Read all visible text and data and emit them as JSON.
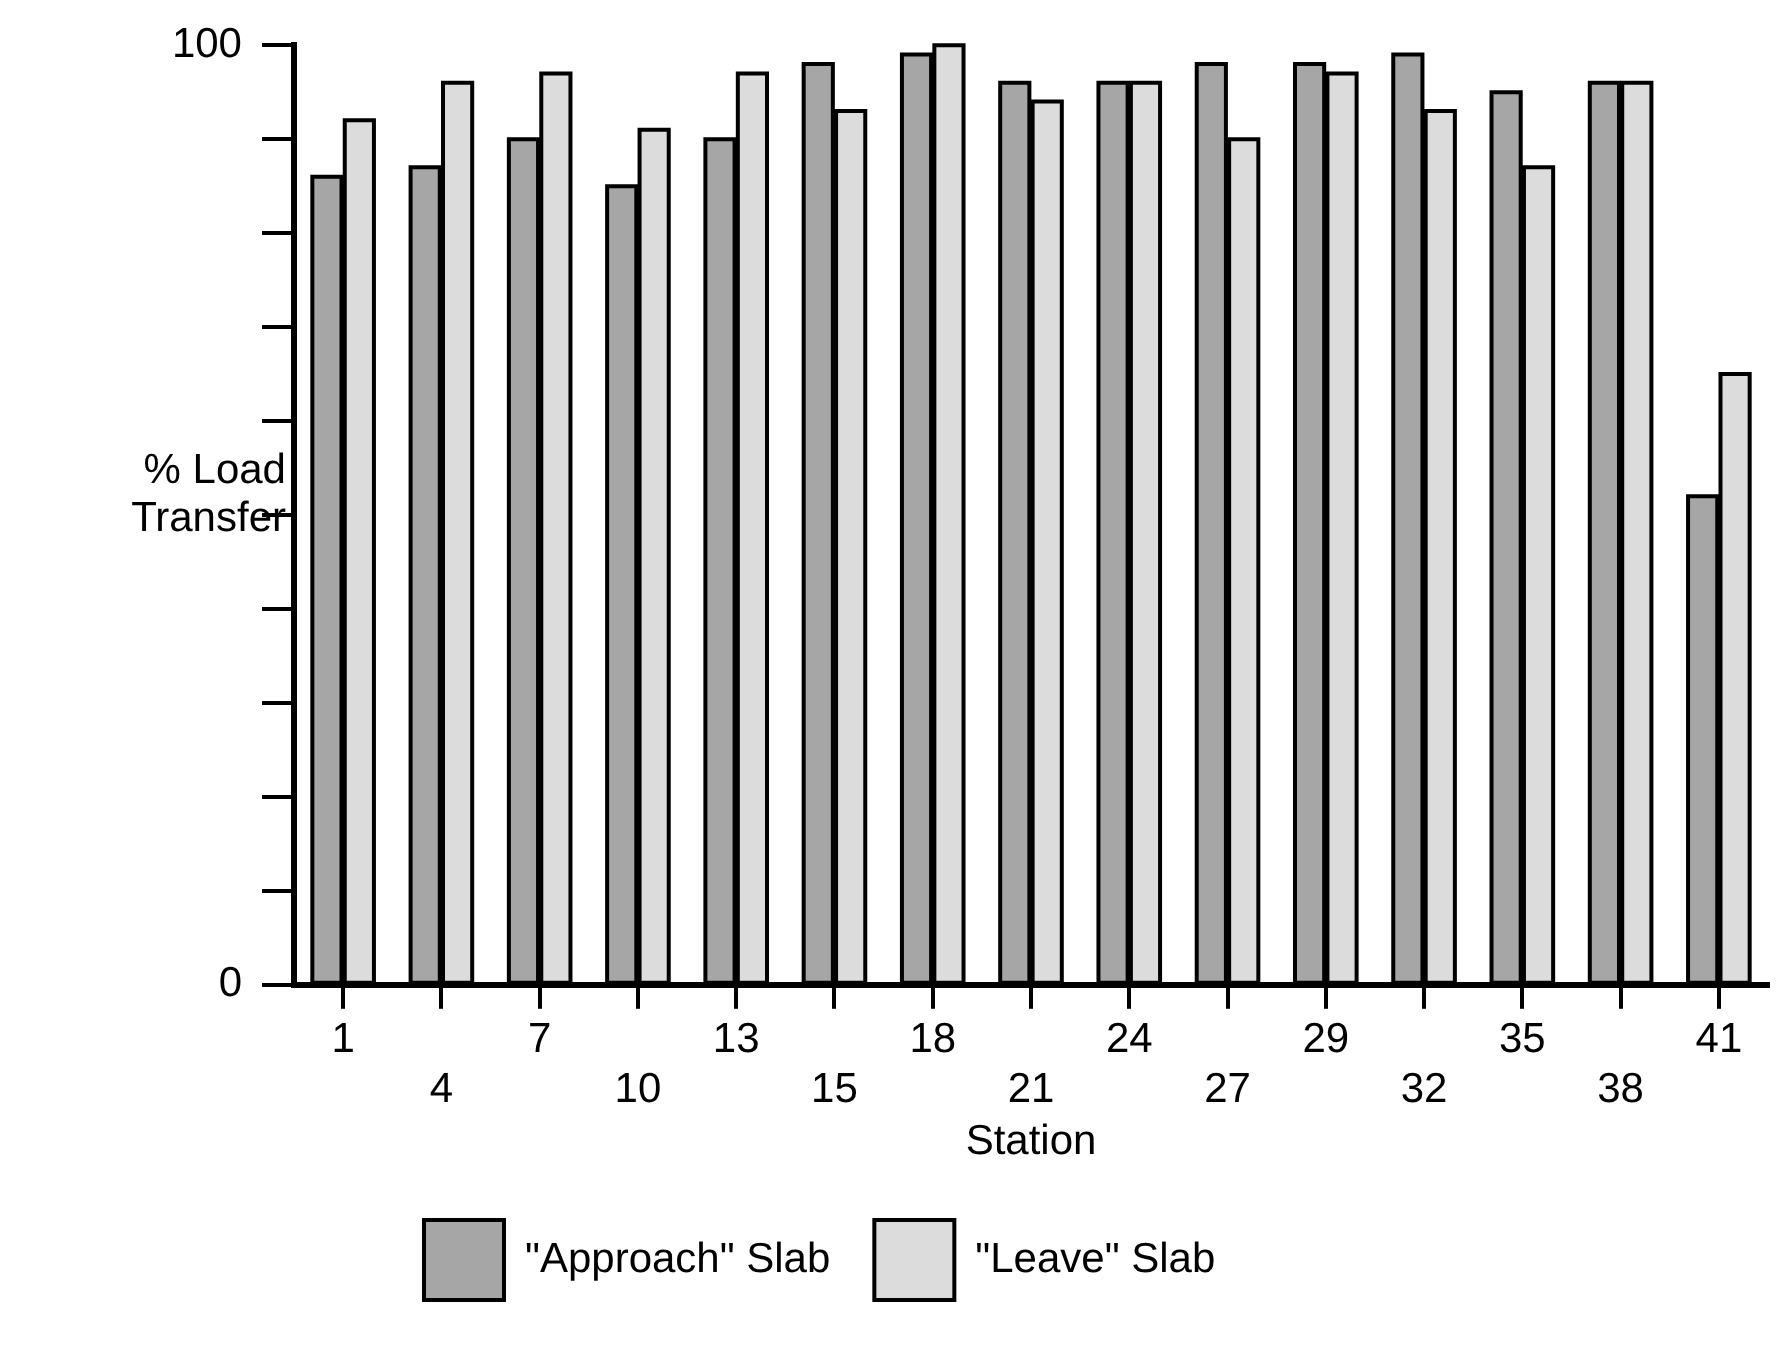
{
  "chart_data": {
    "type": "bar",
    "xlabel": "Station",
    "ylabel": "% Load Transfer",
    "categories": [
      "1",
      "4",
      "7",
      "10",
      "13",
      "15",
      "18",
      "21",
      "24",
      "27",
      "29",
      "32",
      "35",
      "38",
      "41"
    ],
    "series": [
      {
        "name": "\"Approach\" Slab",
        "color": "#a6a6a6",
        "values": [
          86,
          87,
          90,
          85,
          90,
          98,
          99,
          96,
          96,
          98,
          98,
          99,
          95,
          96,
          52
        ]
      },
      {
        "name": "\"Leave\" Slab",
        "color": "#dcdcdc",
        "values": [
          92,
          96,
          97,
          91,
          97,
          93,
          100,
          94,
          96,
          90,
          97,
          93,
          87,
          96,
          65
        ]
      }
    ],
    "ylim": [
      0,
      100
    ],
    "yticks": [
      0,
      {
        "value": 10,
        "label": null
      },
      {
        "value": 20,
        "label": null
      },
      {
        "value": 30,
        "label": null
      },
      {
        "value": 40,
        "label": null
      },
      {
        "value": 50,
        "label": null
      },
      {
        "value": 60,
        "label": null
      },
      {
        "value": 70,
        "label": null
      },
      {
        "value": 80,
        "label": null
      },
      {
        "value": 90,
        "label": null
      },
      100
    ],
    "grid": false,
    "legend": "bottom"
  }
}
